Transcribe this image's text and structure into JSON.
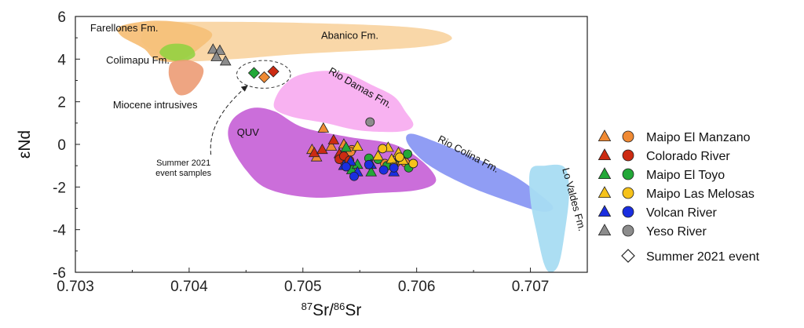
{
  "chart_data": {
    "type": "scatter",
    "xlabel_parts": [
      "87",
      "Sr/",
      "86",
      "Sr"
    ],
    "ylabel": "εNd",
    "xlim": [
      0.703,
      0.7075
    ],
    "ylim": [
      -6,
      6
    ],
    "xticks": [
      0.703,
      0.704,
      0.705,
      0.706,
      0.707
    ],
    "xtick_labels": [
      "0.703",
      "0.704",
      "0.705",
      "0.706",
      "0.707"
    ],
    "yticks": [
      -6,
      -4,
      -2,
      0,
      2,
      4,
      6
    ],
    "ytick_labels": [
      "-6",
      "-4",
      "-2",
      "0",
      "2",
      "4",
      "6"
    ],
    "regions": [
      {
        "id": "farellones",
        "label": "Farellones Fm.",
        "color": "#f3a33c",
        "opacity": 0.65,
        "polygon": [
          [
            0.7034,
            5.55
          ],
          [
            0.7037,
            5.8
          ],
          [
            0.704,
            5.65
          ],
          [
            0.7042,
            5.2
          ],
          [
            0.7041,
            4.55
          ],
          [
            0.7039,
            3.9
          ],
          [
            0.7037,
            4.0
          ],
          [
            0.7036,
            4.5
          ],
          [
            0.7034,
            5.1
          ]
        ]
      },
      {
        "id": "abanico",
        "label": "Abanico Fm.",
        "color": "#f6c27a",
        "opacity": 0.65,
        "polygon": [
          [
            0.7037,
            5.7
          ],
          [
            0.7042,
            5.75
          ],
          [
            0.705,
            5.7
          ],
          [
            0.7058,
            5.55
          ],
          [
            0.7062,
            5.3
          ],
          [
            0.7063,
            4.9
          ],
          [
            0.706,
            4.55
          ],
          [
            0.705,
            4.25
          ],
          [
            0.7044,
            4.0
          ],
          [
            0.704,
            3.9
          ],
          [
            0.7038,
            4.1
          ],
          [
            0.7036,
            4.7
          ],
          [
            0.7036,
            5.3
          ]
        ]
      },
      {
        "id": "colimapu",
        "label": "Colimapu Fm.",
        "color": "#8ed23e",
        "opacity": 0.85,
        "polygon": [
          [
            0.70374,
            4.3
          ],
          [
            0.7038,
            4.65
          ],
          [
            0.70392,
            4.72
          ],
          [
            0.70402,
            4.55
          ],
          [
            0.70405,
            4.15
          ],
          [
            0.70395,
            3.9
          ],
          [
            0.70382,
            3.98
          ]
        ]
      },
      {
        "id": "miocene",
        "label": "Miocene intrusives",
        "color": "#ec9b74",
        "opacity": 0.9,
        "polygon": [
          [
            0.70382,
            3.4
          ],
          [
            0.70385,
            3.85
          ],
          [
            0.704,
            3.95
          ],
          [
            0.70412,
            3.6
          ],
          [
            0.7041,
            3.0
          ],
          [
            0.704,
            2.4
          ],
          [
            0.7039,
            2.35
          ],
          [
            0.70384,
            2.9
          ]
        ]
      },
      {
        "id": "riodamas",
        "label": "Rio Damas Fm.",
        "color": "#f8aef0",
        "opacity": 0.95,
        "polygon": [
          [
            0.705,
            3.3
          ],
          [
            0.7052,
            3.45
          ],
          [
            0.7054,
            3.3
          ],
          [
            0.7056,
            2.8
          ],
          [
            0.7058,
            2.25
          ],
          [
            0.7059,
            1.55
          ],
          [
            0.70597,
            0.9
          ],
          [
            0.70585,
            0.6
          ],
          [
            0.7055,
            0.65
          ],
          [
            0.7052,
            1.0
          ],
          [
            0.7049,
            1.3
          ],
          [
            0.70475,
            1.7
          ],
          [
            0.70478,
            2.4
          ],
          [
            0.70488,
            3.0
          ]
        ]
      },
      {
        "id": "quv",
        "label": "QUV",
        "color": "#c866d8",
        "opacity": 0.95,
        "polygon": [
          [
            0.70438,
            1.15
          ],
          [
            0.70455,
            1.7
          ],
          [
            0.70475,
            1.55
          ],
          [
            0.705,
            0.8
          ],
          [
            0.7054,
            0.35
          ],
          [
            0.7058,
            0.0
          ],
          [
            0.70605,
            -0.8
          ],
          [
            0.70617,
            -1.7
          ],
          [
            0.706,
            -2.15
          ],
          [
            0.7056,
            -2.3
          ],
          [
            0.7051,
            -2.5
          ],
          [
            0.7047,
            -2.1
          ],
          [
            0.7045,
            -1.2
          ],
          [
            0.70435,
            0.2
          ]
        ]
      },
      {
        "id": "riocolina",
        "label": "Rio Colina Fm.",
        "color": "#7d8cf2",
        "opacity": 0.85,
        "polygon": [
          [
            0.70595,
            0.5
          ],
          [
            0.7062,
            0.05
          ],
          [
            0.70652,
            -0.65
          ],
          [
            0.70686,
            -1.5
          ],
          [
            0.70707,
            -2.3
          ],
          [
            0.7072,
            -2.95
          ],
          [
            0.7071,
            -3.15
          ],
          [
            0.70685,
            -2.75
          ],
          [
            0.70645,
            -1.95
          ],
          [
            0.7061,
            -0.95
          ],
          [
            0.70592,
            0.05
          ]
        ]
      },
      {
        "id": "lovaldes",
        "label": "Lo Valdes Fm.",
        "color": "#a8dcf2",
        "opacity": 0.95,
        "polygon": [
          [
            0.707,
            -1.2
          ],
          [
            0.70712,
            -1.0
          ],
          [
            0.7073,
            -1.08
          ],
          [
            0.70734,
            -2.3
          ],
          [
            0.7073,
            -4.2
          ],
          [
            0.70725,
            -5.6
          ],
          [
            0.70718,
            -6.0
          ],
          [
            0.70712,
            -5.6
          ],
          [
            0.70705,
            -4.0
          ],
          [
            0.707,
            -2.6
          ]
        ]
      }
    ],
    "region_labels": [
      {
        "region": "farellones",
        "text": "Farellones Fm.",
        "x": 0.70313,
        "y": 5.3,
        "rotate": 0
      },
      {
        "region": "abanico",
        "text": "Abanico Fm.",
        "x": 0.70516,
        "y": 4.95,
        "rotate": 0
      },
      {
        "region": "colimapu",
        "text": "Colimapu Fm.",
        "x": 0.70327,
        "y": 3.8,
        "rotate": 0
      },
      {
        "region": "miocene",
        "text": "Miocene intrusives",
        "x": 0.70333,
        "y": 1.7,
        "rotate": 0
      },
      {
        "region": "riodamas",
        "text": "Rio Damas Fm.",
        "x": 0.70522,
        "y": 3.35,
        "rotate": 30
      },
      {
        "region": "quv",
        "text": "QUV",
        "x": 0.70442,
        "y": 0.4,
        "rotate": 0
      },
      {
        "region": "riocolina",
        "text": "Rio Colina Fm.",
        "x": 0.70618,
        "y": 0.15,
        "rotate": 28
      },
      {
        "region": "lovaldes",
        "text": "Lo Valdes Fm.",
        "x": 0.70728,
        "y": -1.15,
        "rotate": 75
      }
    ],
    "series": [
      {
        "name": "Maipo El Manzano",
        "color": "#f08a34",
        "triangles": [
          [
            0.70518,
            0.75
          ],
          [
            0.70508,
            -0.25
          ],
          [
            0.70512,
            -0.6
          ],
          [
            0.70525,
            -0.1
          ],
          [
            0.70536,
            0.0
          ]
        ],
        "circles": [
          [
            0.70543,
            -0.25
          ],
          [
            0.70542,
            -0.35
          ],
          [
            0.70572,
            -0.9
          ],
          [
            0.70582,
            -0.85
          ],
          [
            0.7059,
            -0.85
          ],
          [
            0.70535,
            -0.75
          ]
        ]
      },
      {
        "name": "Colorado River",
        "color": "#cc2b12",
        "triangles": [
          [
            0.70527,
            0.2
          ],
          [
            0.7051,
            -0.4
          ],
          [
            0.70517,
            -0.25
          ],
          [
            0.70532,
            -0.45
          ]
        ],
        "circles": [
          [
            0.70532,
            -0.7
          ],
          [
            0.70536,
            -0.55
          ],
          [
            0.70541,
            -0.75
          ]
        ]
      },
      {
        "name": "Maipo El Toyo",
        "color": "#23a838",
        "triangles": [
          [
            0.70538,
            -0.15
          ],
          [
            0.70543,
            -1.2
          ],
          [
            0.7056,
            -1.3
          ],
          [
            0.70548,
            -0.95
          ]
        ],
        "circles": [
          [
            0.70558,
            -0.65
          ],
          [
            0.70566,
            -0.7
          ],
          [
            0.70574,
            -1.0
          ],
          [
            0.70585,
            -0.65
          ],
          [
            0.70592,
            -0.45
          ],
          [
            0.70593,
            -1.1
          ]
        ]
      },
      {
        "name": "Maipo Las Melosas",
        "color": "#f6c21a",
        "triangles": [
          [
            0.70548,
            -0.1
          ],
          [
            0.70566,
            -0.55
          ],
          [
            0.70578,
            -0.7
          ],
          [
            0.70584,
            -0.4
          ],
          [
            0.70588,
            -0.75
          ],
          [
            0.70575,
            -0.15
          ]
        ],
        "circles": [
          [
            0.7057,
            -0.2
          ],
          [
            0.70585,
            -0.6
          ],
          [
            0.70597,
            -0.9
          ],
          [
            0.7058,
            -1.05
          ]
        ]
      },
      {
        "name": "Volcan River",
        "color": "#1a2ee0",
        "triangles": [
          [
            0.70536,
            -1.0
          ],
          [
            0.70542,
            -0.8
          ],
          [
            0.70548,
            -1.3
          ],
          [
            0.7056,
            -0.95
          ],
          [
            0.7058,
            -1.3
          ]
        ],
        "circles": [
          [
            0.70545,
            -1.5
          ],
          [
            0.70558,
            -0.95
          ],
          [
            0.70571,
            -1.2
          ],
          [
            0.7058,
            -1.1
          ],
          [
            0.70538,
            -1.05
          ]
        ]
      },
      {
        "name": "Yeso River",
        "color": "#8c8c8c",
        "triangles": [
          [
            0.70421,
            4.45
          ],
          [
            0.70427,
            4.4
          ],
          [
            0.70424,
            4.1
          ],
          [
            0.70432,
            3.9
          ]
        ],
        "circles": [
          [
            0.70559,
            1.05
          ]
        ]
      }
    ],
    "summer_event": {
      "label": "Summer 2021 event",
      "diamonds": [
        {
          "x": 0.70457,
          "y": 3.35,
          "color": "#23a838"
        },
        {
          "x": 0.70466,
          "y": 3.15,
          "color": "#f08a34"
        },
        {
          "x": 0.70474,
          "y": 3.42,
          "color": "#cc2b12"
        }
      ]
    },
    "annotation": {
      "lines": [
        "Summer 2021",
        "event samples"
      ],
      "x": 0.70395,
      "y": -1.0
    }
  }
}
